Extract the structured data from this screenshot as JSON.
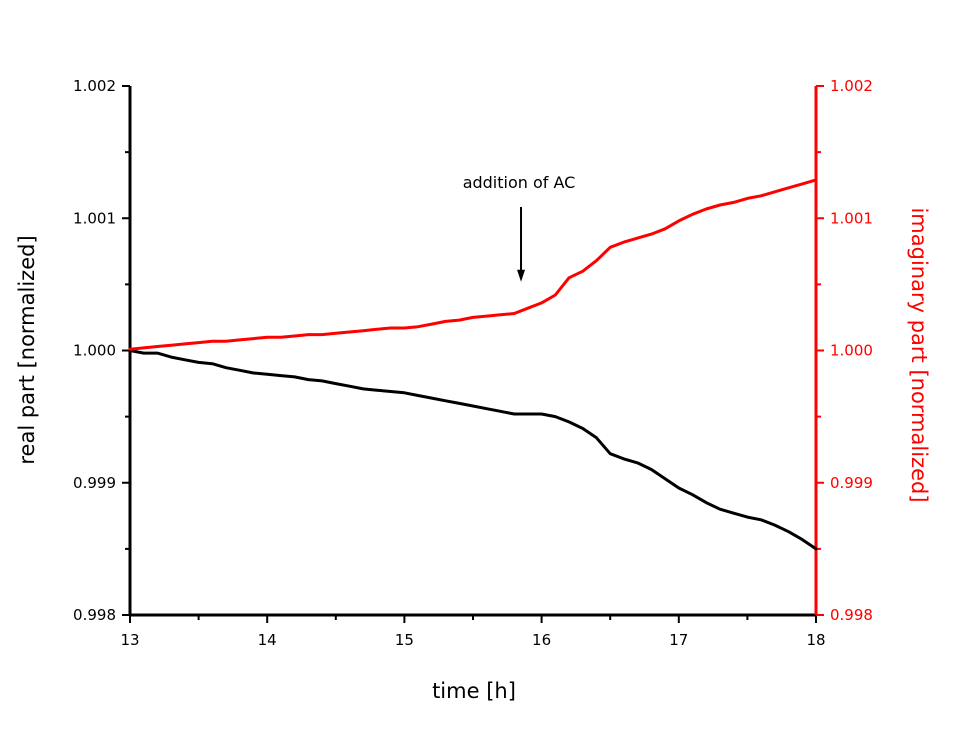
{
  "chart_data": {
    "type": "line",
    "xlabel": "time [h]",
    "ylabel": "real part [normalized]",
    "y2label": "imaginary part [normalized]",
    "xlim": [
      13,
      18
    ],
    "ylim": [
      0.998,
      1.002
    ],
    "y2lim": [
      0.998,
      1.002
    ],
    "x_ticks": [
      "13",
      "14",
      "15",
      "16",
      "17",
      "18"
    ],
    "y_ticks": [
      "0.998",
      "0.999",
      "1.000",
      "1.001",
      "1.002"
    ],
    "y2_ticks": [
      "0.998",
      "0.999",
      "1.000",
      "1.001",
      "1.002"
    ],
    "grid": false,
    "annotation": {
      "text": "addition of AC",
      "x": 15.85,
      "y_arrow_tip": 1.00052
    },
    "series": [
      {
        "axis": "left",
        "color": "#000000",
        "x": [
          13.0,
          13.1,
          13.2,
          13.3,
          13.4,
          13.5,
          13.6,
          13.7,
          13.8,
          13.9,
          14.0,
          14.1,
          14.2,
          14.3,
          14.4,
          14.5,
          14.6,
          14.7,
          14.8,
          14.9,
          15.0,
          15.1,
          15.2,
          15.3,
          15.4,
          15.5,
          15.6,
          15.7,
          15.8,
          15.9,
          16.0,
          16.1,
          16.2,
          16.3,
          16.4,
          16.5,
          16.6,
          16.7,
          16.8,
          16.9,
          17.0,
          17.1,
          17.2,
          17.3,
          17.4,
          17.5,
          17.6,
          17.7,
          17.8,
          17.9,
          18.0
        ],
        "y": [
          1.0,
          0.99998,
          0.99998,
          0.99995,
          0.99993,
          0.99991,
          0.9999,
          0.99987,
          0.99985,
          0.99983,
          0.99982,
          0.99981,
          0.9998,
          0.99978,
          0.99977,
          0.99975,
          0.99973,
          0.99971,
          0.9997,
          0.99969,
          0.99968,
          0.99966,
          0.99964,
          0.99962,
          0.9996,
          0.99958,
          0.99956,
          0.99954,
          0.99952,
          0.99952,
          0.99952,
          0.9995,
          0.99946,
          0.99941,
          0.99934,
          0.99922,
          0.99918,
          0.99915,
          0.9991,
          0.99903,
          0.99896,
          0.99891,
          0.99885,
          0.9988,
          0.99877,
          0.99874,
          0.99872,
          0.99868,
          0.99863,
          0.99857,
          0.9985
        ]
      },
      {
        "axis": "right",
        "color": "#ff0000",
        "x": [
          13.0,
          13.1,
          13.2,
          13.3,
          13.4,
          13.5,
          13.6,
          13.7,
          13.8,
          13.9,
          14.0,
          14.1,
          14.2,
          14.3,
          14.4,
          14.5,
          14.6,
          14.7,
          14.8,
          14.9,
          15.0,
          15.1,
          15.2,
          15.3,
          15.4,
          15.5,
          15.6,
          15.7,
          15.8,
          15.9,
          16.0,
          16.1,
          16.2,
          16.3,
          16.4,
          16.5,
          16.6,
          16.7,
          16.8,
          16.9,
          17.0,
          17.1,
          17.2,
          17.3,
          17.4,
          17.5,
          17.6,
          17.7,
          17.8,
          17.9,
          18.0
        ],
        "y": [
          1.00001,
          1.00002,
          1.00003,
          1.00004,
          1.00005,
          1.00006,
          1.00007,
          1.00007,
          1.00008,
          1.00009,
          1.0001,
          1.0001,
          1.00011,
          1.00012,
          1.00012,
          1.00013,
          1.00014,
          1.00015,
          1.00016,
          1.00017,
          1.00017,
          1.00018,
          1.0002,
          1.00022,
          1.00023,
          1.00025,
          1.00026,
          1.00027,
          1.00028,
          1.00032,
          1.00036,
          1.00042,
          1.00055,
          1.0006,
          1.00068,
          1.00078,
          1.00082,
          1.00085,
          1.00088,
          1.00092,
          1.00098,
          1.00103,
          1.00107,
          1.0011,
          1.00112,
          1.00115,
          1.00117,
          1.0012,
          1.00123,
          1.00126,
          1.00129
        ]
      }
    ]
  }
}
